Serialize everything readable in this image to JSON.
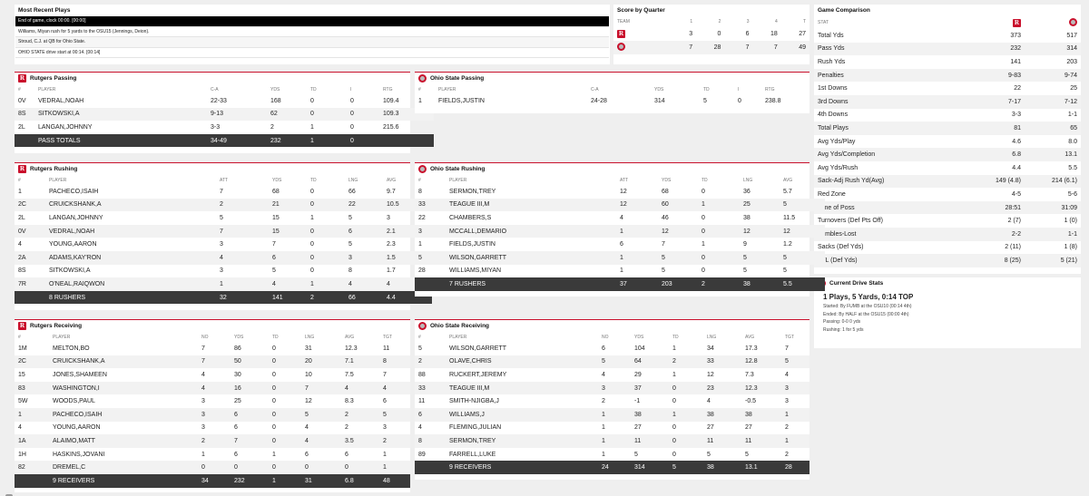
{
  "recent_plays": {
    "title": "Most Recent Plays",
    "plays": [
      "End of game, clock 00:00. [00:00]",
      "Williams, Miyan rush for 5 yards to the OSU15 (Jennings, Deion).",
      "Stroud, C.J. at QB for Ohio State.",
      "OHIO STATE drive start at 00:14. [00:14]"
    ]
  },
  "score_by_quarter": {
    "title": "Score by Quarter",
    "headers": [
      "TEAM",
      "1",
      "2",
      "3",
      "4",
      "T"
    ],
    "rows": [
      {
        "team": "Rutgers",
        "q": [
          "3",
          "0",
          "6",
          "18",
          "27"
        ]
      },
      {
        "team": "Ohio State",
        "q": [
          "7",
          "28",
          "7",
          "7",
          "49"
        ]
      }
    ]
  },
  "game_comparison": {
    "title": "Game Comparison",
    "stat_header": "STAT",
    "rows": [
      {
        "stat": "Total Yds",
        "rut": "373",
        "osu": "517"
      },
      {
        "stat": "Pass Yds",
        "rut": "232",
        "osu": "314"
      },
      {
        "stat": "Rush Yds",
        "rut": "141",
        "osu": "203"
      },
      {
        "stat": "Penalties",
        "rut": "9-83",
        "osu": "9-74"
      },
      {
        "stat": "1st Downs",
        "rut": "22",
        "osu": "25"
      },
      {
        "stat": "3rd Downs",
        "rut": "7-17",
        "osu": "7-12"
      },
      {
        "stat": "4th Downs",
        "rut": "3-3",
        "osu": "1-1"
      },
      {
        "stat": "Total Plays",
        "rut": "81",
        "osu": "65"
      },
      {
        "stat": "Avg Yds/Play",
        "rut": "4.6",
        "osu": "8.0"
      },
      {
        "stat": "Avg Yds/Completion",
        "rut": "6.8",
        "osu": "13.1"
      },
      {
        "stat": "Avg Yds/Rush",
        "rut": "4.4",
        "osu": "5.5"
      },
      {
        "stat": "Sack-Adj Rush Yd(Avg)",
        "rut": "149 (4.8)",
        "osu": "214 (6.1)"
      },
      {
        "stat": "Red Zone",
        "rut": "4-5",
        "osu": "5-6"
      },
      {
        "stat": "Time of Poss",
        "rut": "28:51",
        "osu": "31:09"
      },
      {
        "stat": "Turnovers (Def Pts Off)",
        "rut": "2 (7)",
        "osu": "1 (0)"
      },
      {
        "stat": "Fumbles-Lost",
        "rut": "2-2",
        "osu": "1-1"
      },
      {
        "stat": "Sacks (Def Yds)",
        "rut": "2 (11)",
        "osu": "1 (8)"
      },
      {
        "stat": "TFL (Def Yds)",
        "rut": "8 (25)",
        "osu": "5 (21)"
      }
    ]
  },
  "current_drive": {
    "title": "Current Drive Stats",
    "headline": "1 Plays, 5 Yards, 0:14 TOP",
    "lines": [
      "Started: By FUMB at the OSU10 (00:14 4th)",
      "Ended: By HALF at the OSU15 (00:00 4th)",
      "Passing: 0-0 0 yds",
      "Rushing: 1 for 5 yds"
    ]
  },
  "rutgers_passing": {
    "title": "Rutgers Passing",
    "headers": [
      "#",
      "PLAYER",
      "C-A",
      "YDS",
      "TD",
      "I",
      "RTG"
    ],
    "rows": [
      [
        "0V",
        "VEDRAL,NOAH",
        "22-33",
        "168",
        "0",
        "0",
        "109.4"
      ],
      [
        "8S",
        "SITKOWSKI,A",
        "9-13",
        "62",
        "0",
        "0",
        "109.3"
      ],
      [
        "2L",
        "LANGAN,JOHNNY",
        "3-3",
        "2",
        "1",
        "0",
        "215.6"
      ]
    ],
    "total": [
      "",
      "PASS TOTALS",
      "34-49",
      "232",
      "1",
      "0",
      ""
    ]
  },
  "osu_passing": {
    "title": "Ohio State Passing",
    "headers": [
      "#",
      "PLAYER",
      "C-A",
      "YDS",
      "TD",
      "I",
      "RTG"
    ],
    "rows": [
      [
        "1",
        "FIELDS,JUSTIN",
        "24-28",
        "314",
        "5",
        "0",
        "238.8"
      ]
    ]
  },
  "rutgers_rushing": {
    "title": "Rutgers Rushing",
    "headers": [
      "#",
      "PLAYER",
      "ATT",
      "YDS",
      "TD",
      "LNG",
      "AVG"
    ],
    "rows": [
      [
        "1",
        "PACHECO,ISAIH",
        "7",
        "68",
        "0",
        "66",
        "9.7"
      ],
      [
        "2C",
        "CRUICKSHANK,A",
        "2",
        "21",
        "0",
        "22",
        "10.5"
      ],
      [
        "2L",
        "LANGAN,JOHNNY",
        "5",
        "15",
        "1",
        "5",
        "3"
      ],
      [
        "0V",
        "VEDRAL,NOAH",
        "7",
        "15",
        "0",
        "6",
        "2.1"
      ],
      [
        "4",
        "YOUNG,AARON",
        "3",
        "7",
        "0",
        "5",
        "2.3"
      ],
      [
        "2A",
        "ADAMS,KAY'RON",
        "4",
        "6",
        "0",
        "3",
        "1.5"
      ],
      [
        "8S",
        "SITKOWSKI,A",
        "3",
        "5",
        "0",
        "8",
        "1.7"
      ],
      [
        "7R",
        "O'NEAL,RAIQWON",
        "1",
        "4",
        "1",
        "4",
        "4"
      ]
    ],
    "total": [
      "",
      "8 RUSHERS",
      "32",
      "141",
      "2",
      "66",
      "4.4"
    ]
  },
  "osu_rushing": {
    "title": "Ohio State Rushing",
    "headers": [
      "#",
      "PLAYER",
      "ATT",
      "YDS",
      "TD",
      "LNG",
      "AVG"
    ],
    "rows": [
      [
        "8",
        "SERMON,TREY",
        "12",
        "68",
        "0",
        "36",
        "5.7"
      ],
      [
        "33",
        "TEAGUE III,M",
        "12",
        "60",
        "1",
        "25",
        "5"
      ],
      [
        "22",
        "CHAMBERS,S",
        "4",
        "46",
        "0",
        "38",
        "11.5"
      ],
      [
        "3",
        "MCCALL,DEMARIO",
        "1",
        "12",
        "0",
        "12",
        "12"
      ],
      [
        "1",
        "FIELDS,JUSTIN",
        "6",
        "7",
        "1",
        "9",
        "1.2"
      ],
      [
        "5",
        "WILSON,GARRETT",
        "1",
        "5",
        "0",
        "5",
        "5"
      ],
      [
        "28",
        "WILLIAMS,MIYAN",
        "1",
        "5",
        "0",
        "5",
        "5"
      ]
    ],
    "total": [
      "",
      "7 RUSHERS",
      "37",
      "203",
      "2",
      "38",
      "5.5"
    ]
  },
  "rutgers_receiving": {
    "title": "Rutgers Receiving",
    "headers": [
      "#",
      "PLAYER",
      "NO",
      "YDS",
      "TD",
      "LNG",
      "AVG",
      "TGT"
    ],
    "rows": [
      [
        "1M",
        "MELTON,BO",
        "7",
        "86",
        "0",
        "31",
        "12.3",
        "11"
      ],
      [
        "2C",
        "CRUICKSHANK,A",
        "7",
        "50",
        "0",
        "20",
        "7.1",
        "8"
      ],
      [
        "15",
        "JONES,SHAMEEN",
        "4",
        "30",
        "0",
        "10",
        "7.5",
        "7"
      ],
      [
        "83",
        "WASHINGTON,I",
        "4",
        "16",
        "0",
        "7",
        "4",
        "4"
      ],
      [
        "5W",
        "WOODS,PAUL",
        "3",
        "25",
        "0",
        "12",
        "8.3",
        "6"
      ],
      [
        "1",
        "PACHECO,ISAIH",
        "3",
        "6",
        "0",
        "5",
        "2",
        "5"
      ],
      [
        "4",
        "YOUNG,AARON",
        "3",
        "6",
        "0",
        "4",
        "2",
        "3"
      ],
      [
        "1A",
        "ALAIMO,MATT",
        "2",
        "7",
        "0",
        "4",
        "3.5",
        "2"
      ],
      [
        "1H",
        "HASKINS,JOVANI",
        "1",
        "6",
        "1",
        "6",
        "6",
        "1"
      ],
      [
        "82",
        "DREMEL,C",
        "0",
        "0",
        "0",
        "0",
        "0",
        "1"
      ]
    ],
    "total": [
      "",
      "9 RECEIVERS",
      "34",
      "232",
      "1",
      "31",
      "6.8",
      "48"
    ]
  },
  "osu_receiving": {
    "title": "Ohio State Receiving",
    "headers": [
      "#",
      "PLAYER",
      "NO",
      "YDS",
      "TD",
      "LNG",
      "AVG",
      "TGT"
    ],
    "rows": [
      [
        "5",
        "WILSON,GARRETT",
        "6",
        "104",
        "1",
        "34",
        "17.3",
        "7"
      ],
      [
        "2",
        "OLAVE,CHRIS",
        "5",
        "64",
        "2",
        "33",
        "12.8",
        "5"
      ],
      [
        "88",
        "RUCKERT,JEREMY",
        "4",
        "29",
        "1",
        "12",
        "7.3",
        "4"
      ],
      [
        "33",
        "TEAGUE III,M",
        "3",
        "37",
        "0",
        "23",
        "12.3",
        "3"
      ],
      [
        "11",
        "SMITH-NJIGBA,J",
        "2",
        "-1",
        "0",
        "4",
        "-0.5",
        "3"
      ],
      [
        "6",
        "WILLIAMS,J",
        "1",
        "38",
        "1",
        "38",
        "38",
        "1"
      ],
      [
        "4",
        "FLEMING,JULIAN",
        "1",
        "27",
        "0",
        "27",
        "27",
        "2"
      ],
      [
        "8",
        "SERMON,TREY",
        "1",
        "11",
        "0",
        "11",
        "11",
        "1"
      ],
      [
        "89",
        "FARRELL,LUKE",
        "1",
        "5",
        "0",
        "5",
        "5",
        "2"
      ]
    ],
    "total": [
      "",
      "9 RECEIVERS",
      "24",
      "314",
      "5",
      "38",
      "13.1",
      "28"
    ]
  },
  "badge": "",
  "colors": {
    "rutgers": "#c9102c",
    "osu": "#bb0000",
    "total_row": "#3a3a3a"
  }
}
